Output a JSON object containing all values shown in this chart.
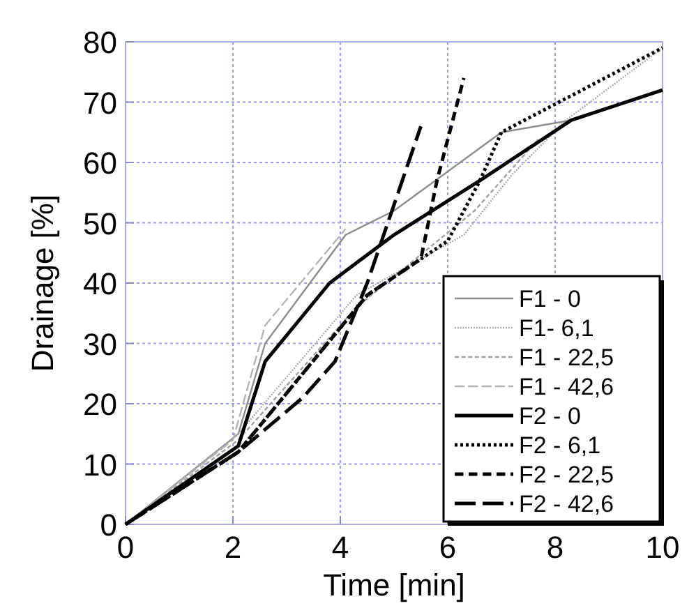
{
  "chart_data": {
    "type": "line",
    "xlabel": "Time [min]",
    "ylabel": "Drainage [%]",
    "xlim": [
      0,
      10
    ],
    "ylim": [
      0,
      80
    ],
    "xticks": [
      0,
      2,
      4,
      6,
      8,
      10
    ],
    "yticks": [
      0,
      10,
      20,
      30,
      40,
      50,
      60,
      70,
      80
    ],
    "grid": true,
    "legend": "bottom right",
    "series": [
      {
        "name": "F1 - 0",
        "color": "#8c8c8c",
        "line_style": "solid",
        "x": [
          0,
          2.1,
          2.6,
          4.1,
          5,
          7,
          8.3
        ],
        "values": [
          0,
          15,
          30,
          48,
          52,
          65,
          67
        ]
      },
      {
        "name": "F1- 6,1",
        "color": "#a8a8a8",
        "line_style": "dotted",
        "x": [
          0,
          2.1,
          4.3,
          6.3,
          7.2,
          8.2,
          10
        ],
        "values": [
          0,
          15,
          38,
          48,
          58,
          67,
          79
        ]
      },
      {
        "name": "F1 - 22,5",
        "color": "#a0a0a0",
        "line_style": "dashed",
        "x": [
          0,
          2.1,
          4.3,
          6.5,
          7.7
        ],
        "values": [
          0,
          14,
          36,
          52,
          64
        ]
      },
      {
        "name": "F1 - 42,6",
        "color": "#b4b4b4",
        "line_style": "dashed",
        "x": [
          0,
          2,
          2.6,
          4.1
        ],
        "values": [
          0,
          14,
          33,
          49
        ]
      },
      {
        "name": "F2 - 0",
        "color": "#000000",
        "line_style": "solid",
        "x": [
          0,
          2.1,
          2.6,
          3.8,
          5,
          6.6,
          8.3,
          10
        ],
        "values": [
          0,
          13,
          27,
          40,
          48,
          57,
          67,
          72
        ]
      },
      {
        "name": "F2 - 6,1",
        "color": "#000000",
        "line_style": "dotted",
        "x": [
          0,
          2.1,
          4.5,
          6,
          6.6,
          7,
          10
        ],
        "values": [
          0,
          12,
          38,
          47,
          57,
          65,
          79
        ]
      },
      {
        "name": "F2 - 22,5",
        "color": "#000000",
        "line_style": "dashed",
        "x": [
          0,
          2.1,
          4.5,
          5.5,
          5.8,
          6.3
        ],
        "values": [
          0,
          12,
          38,
          44,
          57,
          74
        ]
      },
      {
        "name": "F2 - 42,6",
        "color": "#000000",
        "line_style": "dashed",
        "x": [
          0,
          2.1,
          3.3,
          3.9,
          4.5,
          5.5
        ],
        "values": [
          0,
          12,
          21,
          27,
          40,
          66
        ]
      }
    ]
  }
}
